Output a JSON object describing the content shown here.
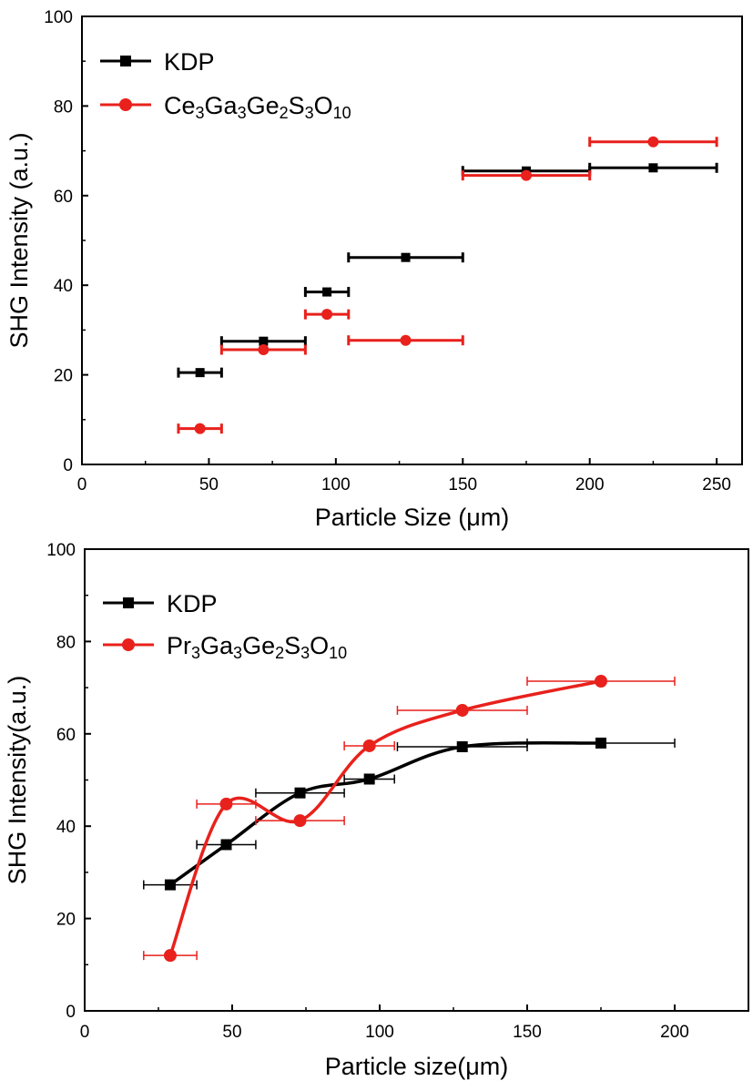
{
  "chart_data": [
    {
      "type": "scatter",
      "title": "",
      "xlabel": "Particle Size (μm)",
      "ylabel": "SHG Intensity (a.u.)",
      "xlim": [
        0,
        260
      ],
      "ylim": [
        0,
        100
      ],
      "xticks": [
        0,
        50,
        100,
        150,
        200,
        250
      ],
      "yticks": [
        0,
        20,
        40,
        60,
        80,
        100
      ],
      "grid": false,
      "legend_position": "top-left",
      "series": [
        {
          "name": "KDP",
          "color": "#000000",
          "marker": "square",
          "connect": "none",
          "x": [
            46.5,
            71.5,
            96.5,
            127.5,
            175,
            225
          ],
          "y": [
            20.5,
            27.5,
            38.5,
            46.2,
            65.5,
            66.2
          ],
          "xerr": [
            8.5,
            16.5,
            8.5,
            22.5,
            25,
            25
          ]
        },
        {
          "name": "Ce3Ga3Ge2S3O10",
          "name_parts": [
            [
              "Ce",
              ""
            ],
            [
              "3",
              "sub"
            ],
            [
              "Ga",
              ""
            ],
            [
              "3",
              "sub"
            ],
            [
              "Ge",
              ""
            ],
            [
              "2",
              "sub"
            ],
            [
              "S",
              ""
            ],
            [
              "3",
              "sub"
            ],
            [
              "O",
              ""
            ],
            [
              "10",
              "sub"
            ]
          ],
          "color": "#e8211c",
          "marker": "circle",
          "connect": "none",
          "x": [
            46.5,
            71.5,
            96.5,
            127.5,
            175,
            225
          ],
          "y": [
            8.0,
            25.6,
            33.5,
            27.7,
            64.5,
            72.0
          ],
          "xerr": [
            8.5,
            16.5,
            8.5,
            22.5,
            25,
            25
          ]
        }
      ]
    },
    {
      "type": "line",
      "title": "",
      "xlabel": "Particle size(μm)",
      "ylabel": "SHG Intensity(a.u.)",
      "xlim": [
        0,
        225
      ],
      "ylim": [
        0,
        100
      ],
      "xticks": [
        0,
        50,
        100,
        150,
        200
      ],
      "yticks": [
        0,
        20,
        40,
        60,
        80,
        100
      ],
      "grid": false,
      "legend_position": "top-left",
      "series": [
        {
          "name": "KDP",
          "color": "#000000",
          "marker": "square",
          "connect": "smooth",
          "x": [
            29,
            48,
            73,
            96.5,
            128,
            175
          ],
          "y": [
            27.3,
            36.0,
            47.2,
            50.2,
            57.2,
            58.0
          ],
          "xerr": [
            9,
            10,
            15,
            8.5,
            22,
            25
          ]
        },
        {
          "name": "Pr3Ga3Ge2S3O10",
          "name_parts": [
            [
              "Pr",
              ""
            ],
            [
              "3",
              "sub"
            ],
            [
              "Ga",
              ""
            ],
            [
              "3",
              "sub"
            ],
            [
              "Ge",
              ""
            ],
            [
              "2",
              "sub"
            ],
            [
              "S",
              ""
            ],
            [
              "3",
              "sub"
            ],
            [
              "O",
              ""
            ],
            [
              "10",
              "sub"
            ]
          ],
          "color": "#e8211c",
          "marker": "circle",
          "connect": "smooth",
          "x": [
            29,
            48,
            73,
            96.5,
            128,
            175
          ],
          "y": [
            12.0,
            44.8,
            41.2,
            57.4,
            65.1,
            71.4
          ],
          "xerr": [
            9,
            10,
            15,
            8.5,
            22,
            25
          ]
        }
      ]
    }
  ]
}
